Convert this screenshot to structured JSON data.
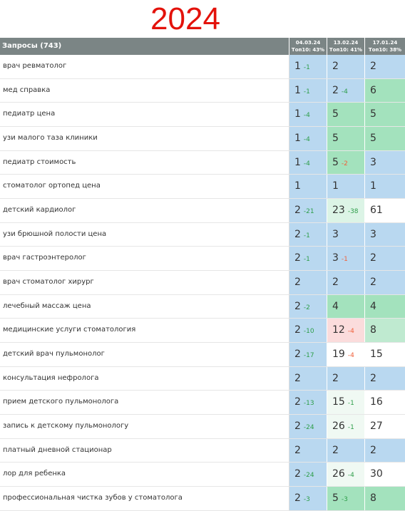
{
  "header": {
    "title": "2024"
  },
  "table": {
    "header": "Запросы (743)",
    "columns": [
      {
        "date": "04.03.24",
        "top": "Топ10: 43%"
      },
      {
        "date": "13.02.24",
        "top": "Топ10: 41%"
      },
      {
        "date": "17.01.24",
        "top": "Топ10: 38%"
      }
    ],
    "rows": [
      {
        "query": "врач ревматолог",
        "cells": [
          {
            "pos": 1,
            "delta": -1,
            "delta_color": "#2e9e4a",
            "bg": "#b9d8f0"
          },
          {
            "pos": 2,
            "bg": "#b9d8f0"
          },
          {
            "pos": 2,
            "bg": "#b9d8f0"
          }
        ]
      },
      {
        "query": "мед справка",
        "cells": [
          {
            "pos": 1,
            "delta": -1,
            "delta_color": "#2e9e4a",
            "bg": "#b9d8f0"
          },
          {
            "pos": 2,
            "delta": -4,
            "delta_color": "#2e9e4a",
            "bg": "#b9d8f0"
          },
          {
            "pos": 6,
            "bg": "#a3e2bd"
          }
        ]
      },
      {
        "query": "педиатр цена",
        "cells": [
          {
            "pos": 1,
            "delta": -4,
            "delta_color": "#2e9e4a",
            "bg": "#b9d8f0"
          },
          {
            "pos": 5,
            "bg": "#a3e2bd"
          },
          {
            "pos": 5,
            "bg": "#a3e2bd"
          }
        ]
      },
      {
        "query": "узи малого таза клиники",
        "cells": [
          {
            "pos": 1,
            "delta": -4,
            "delta_color": "#2e9e4a",
            "bg": "#b9d8f0"
          },
          {
            "pos": 5,
            "bg": "#a3e2bd"
          },
          {
            "pos": 5,
            "bg": "#a3e2bd"
          }
        ]
      },
      {
        "query": "педиатр стоимость",
        "cells": [
          {
            "pos": 1,
            "delta": -4,
            "delta_color": "#2e9e4a",
            "bg": "#b9d8f0"
          },
          {
            "pos": 5,
            "delta": -2,
            "delta_color": "#f0603a",
            "bg": "#a3e2bd"
          },
          {
            "pos": 3,
            "bg": "#b9d8f0"
          }
        ]
      },
      {
        "query": "стоматолог ортопед цена",
        "cells": [
          {
            "pos": 1,
            "bg": "#b9d8f0"
          },
          {
            "pos": 1,
            "bg": "#b9d8f0"
          },
          {
            "pos": 1,
            "bg": "#b9d8f0"
          }
        ]
      },
      {
        "query": "детский кардиолог",
        "cells": [
          {
            "pos": 2,
            "delta": -21,
            "delta_color": "#2e9e4a",
            "bg": "#b9d8f0"
          },
          {
            "pos": 23,
            "delta": -38,
            "delta_color": "#2e9e4a",
            "bg": "#dcf4e6"
          },
          {
            "pos": 61,
            "bg": "#ffffff"
          }
        ]
      },
      {
        "query": "узи брюшной полости цена",
        "cells": [
          {
            "pos": 2,
            "delta": -1,
            "delta_color": "#2e9e4a",
            "bg": "#b9d8f0"
          },
          {
            "pos": 3,
            "bg": "#b9d8f0"
          },
          {
            "pos": 3,
            "bg": "#b9d8f0"
          }
        ]
      },
      {
        "query": "врач гастроэнтеролог",
        "cells": [
          {
            "pos": 2,
            "delta": -1,
            "delta_color": "#2e9e4a",
            "bg": "#b9d8f0"
          },
          {
            "pos": 3,
            "delta": -1,
            "delta_color": "#f0603a",
            "bg": "#b9d8f0"
          },
          {
            "pos": 2,
            "bg": "#b9d8f0"
          }
        ]
      },
      {
        "query": "врач стоматолог хирург",
        "cells": [
          {
            "pos": 2,
            "bg": "#b9d8f0"
          },
          {
            "pos": 2,
            "bg": "#b9d8f0"
          },
          {
            "pos": 2,
            "bg": "#b9d8f0"
          }
        ]
      },
      {
        "query": "лечебный массаж цена",
        "cells": [
          {
            "pos": 2,
            "delta": -2,
            "delta_color": "#2e9e4a",
            "bg": "#b9d8f0"
          },
          {
            "pos": 4,
            "bg": "#a3e2bd"
          },
          {
            "pos": 4,
            "bg": "#a3e2bd"
          }
        ]
      },
      {
        "query": "медицинские услуги стоматология",
        "cells": [
          {
            "pos": 2,
            "delta": -10,
            "delta_color": "#2e9e4a",
            "bg": "#b9d8f0"
          },
          {
            "pos": 12,
            "delta": -4,
            "delta_color": "#f0603a",
            "bg": "#fbdcdc"
          },
          {
            "pos": 8,
            "bg": "#bfead0"
          }
        ]
      },
      {
        "query": "детский врач пульмонолог",
        "cells": [
          {
            "pos": 2,
            "delta": -17,
            "delta_color": "#2e9e4a",
            "bg": "#b9d8f0"
          },
          {
            "pos": 19,
            "delta": -4,
            "delta_color": "#f0603a",
            "bg": "#ffffff"
          },
          {
            "pos": 15,
            "bg": "#ffffff"
          }
        ]
      },
      {
        "query": "консультация нефролога",
        "cells": [
          {
            "pos": 2,
            "bg": "#b9d8f0"
          },
          {
            "pos": 2,
            "bg": "#b9d8f0"
          },
          {
            "pos": 2,
            "bg": "#b9d8f0"
          }
        ]
      },
      {
        "query": "прием детского пульмонолога",
        "cells": [
          {
            "pos": 2,
            "delta": -13,
            "delta_color": "#2e9e4a",
            "bg": "#b9d8f0"
          },
          {
            "pos": 15,
            "delta": -1,
            "delta_color": "#2e9e4a",
            "bg": "#f0f9f3"
          },
          {
            "pos": 16,
            "bg": "#ffffff"
          }
        ]
      },
      {
        "query": "запись к детскому пульмонологу",
        "cells": [
          {
            "pos": 2,
            "delta": -24,
            "delta_color": "#2e9e4a",
            "bg": "#b9d8f0"
          },
          {
            "pos": 26,
            "delta": -1,
            "delta_color": "#2e9e4a",
            "bg": "#f0f9f3"
          },
          {
            "pos": 27,
            "bg": "#ffffff"
          }
        ]
      },
      {
        "query": "платный дневной стационар",
        "cells": [
          {
            "pos": 2,
            "bg": "#b9d8f0"
          },
          {
            "pos": 2,
            "bg": "#b9d8f0"
          },
          {
            "pos": 2,
            "bg": "#b9d8f0"
          }
        ]
      },
      {
        "query": "лор для ребенка",
        "cells": [
          {
            "pos": 2,
            "delta": -24,
            "delta_color": "#2e9e4a",
            "bg": "#b9d8f0"
          },
          {
            "pos": 26,
            "delta": -4,
            "delta_color": "#2e9e4a",
            "bg": "#f0f9f3"
          },
          {
            "pos": 30,
            "bg": "#ffffff"
          }
        ]
      },
      {
        "query": "профессиональная чистка зубов у стоматолога",
        "cells": [
          {
            "pos": 2,
            "delta": -3,
            "delta_color": "#2e9e4a",
            "bg": "#b9d8f0"
          },
          {
            "pos": 5,
            "delta": -3,
            "delta_color": "#2e9e4a",
            "bg": "#a3e2bd"
          },
          {
            "pos": 8,
            "bg": "#a3e2bd"
          }
        ]
      }
    ]
  }
}
